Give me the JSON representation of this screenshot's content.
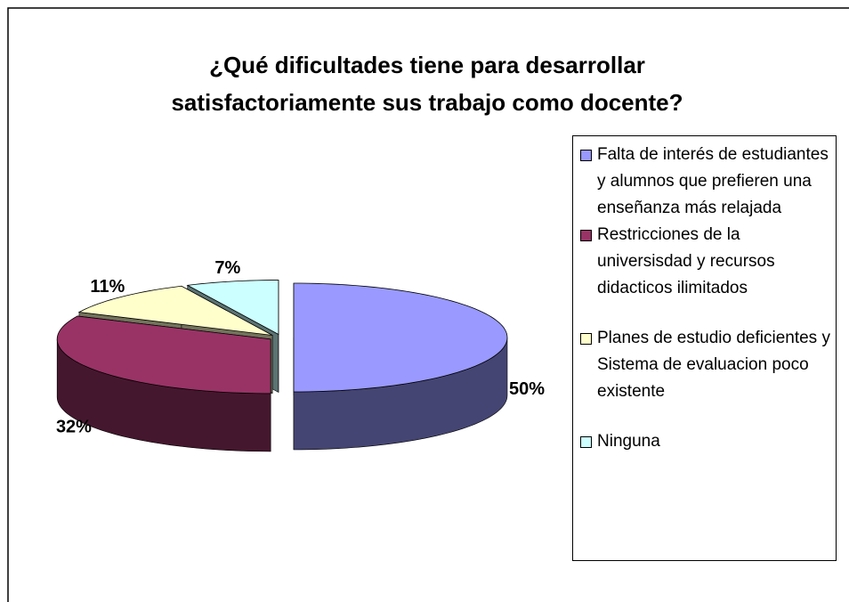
{
  "chart_data": {
    "type": "pie",
    "title": "¿Qué dificultades tiene para desarrollar satisfactoriamente sus trabajo como docente?",
    "categories": [
      "Falta de interés de estudiantes y alumnos que prefieren una enseñanza más relajada",
      "Restricciones de la universisdad y recursos didacticos ilimitados",
      "Planes de estudio deficientes y Sistema de evaluacion poco existente",
      "Ninguna"
    ],
    "values": [
      50,
      32,
      11,
      7
    ],
    "value_labels": [
      "50%",
      "32%",
      "11%",
      "7%"
    ],
    "colors": [
      "#9999ff",
      "#993366",
      "#ffffcc",
      "#ccffff"
    ],
    "legend": "right"
  }
}
